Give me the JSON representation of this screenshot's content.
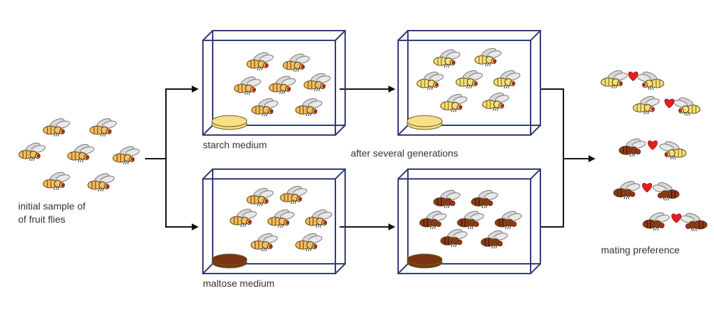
{
  "labels": {
    "initial_line1": "initial sample of",
    "initial_line2": "of fruit flies",
    "starch_medium": "starch medium",
    "after_generations": "after several generations",
    "maltose_medium": "maltose medium",
    "mating_preference": "mating preference"
  },
  "colors": {
    "box_stroke": "#2f3d73",
    "arrow": "#111111",
    "starch": "#f9df86",
    "maltose": "#7a3410",
    "heart": "#e02020"
  },
  "fly_types": {
    "initial": {
      "body": "#f0c063",
      "stripe": "#a05a1a"
    },
    "starch": {
      "body": "#f5e07a",
      "stripe": "#9a8a2a"
    },
    "maltose": {
      "body": "#8a3c18",
      "stripe": "#4a1a08"
    }
  },
  "icons": [
    "fruit-fly-icon",
    "heart-icon",
    "food-dish-icon"
  ]
}
